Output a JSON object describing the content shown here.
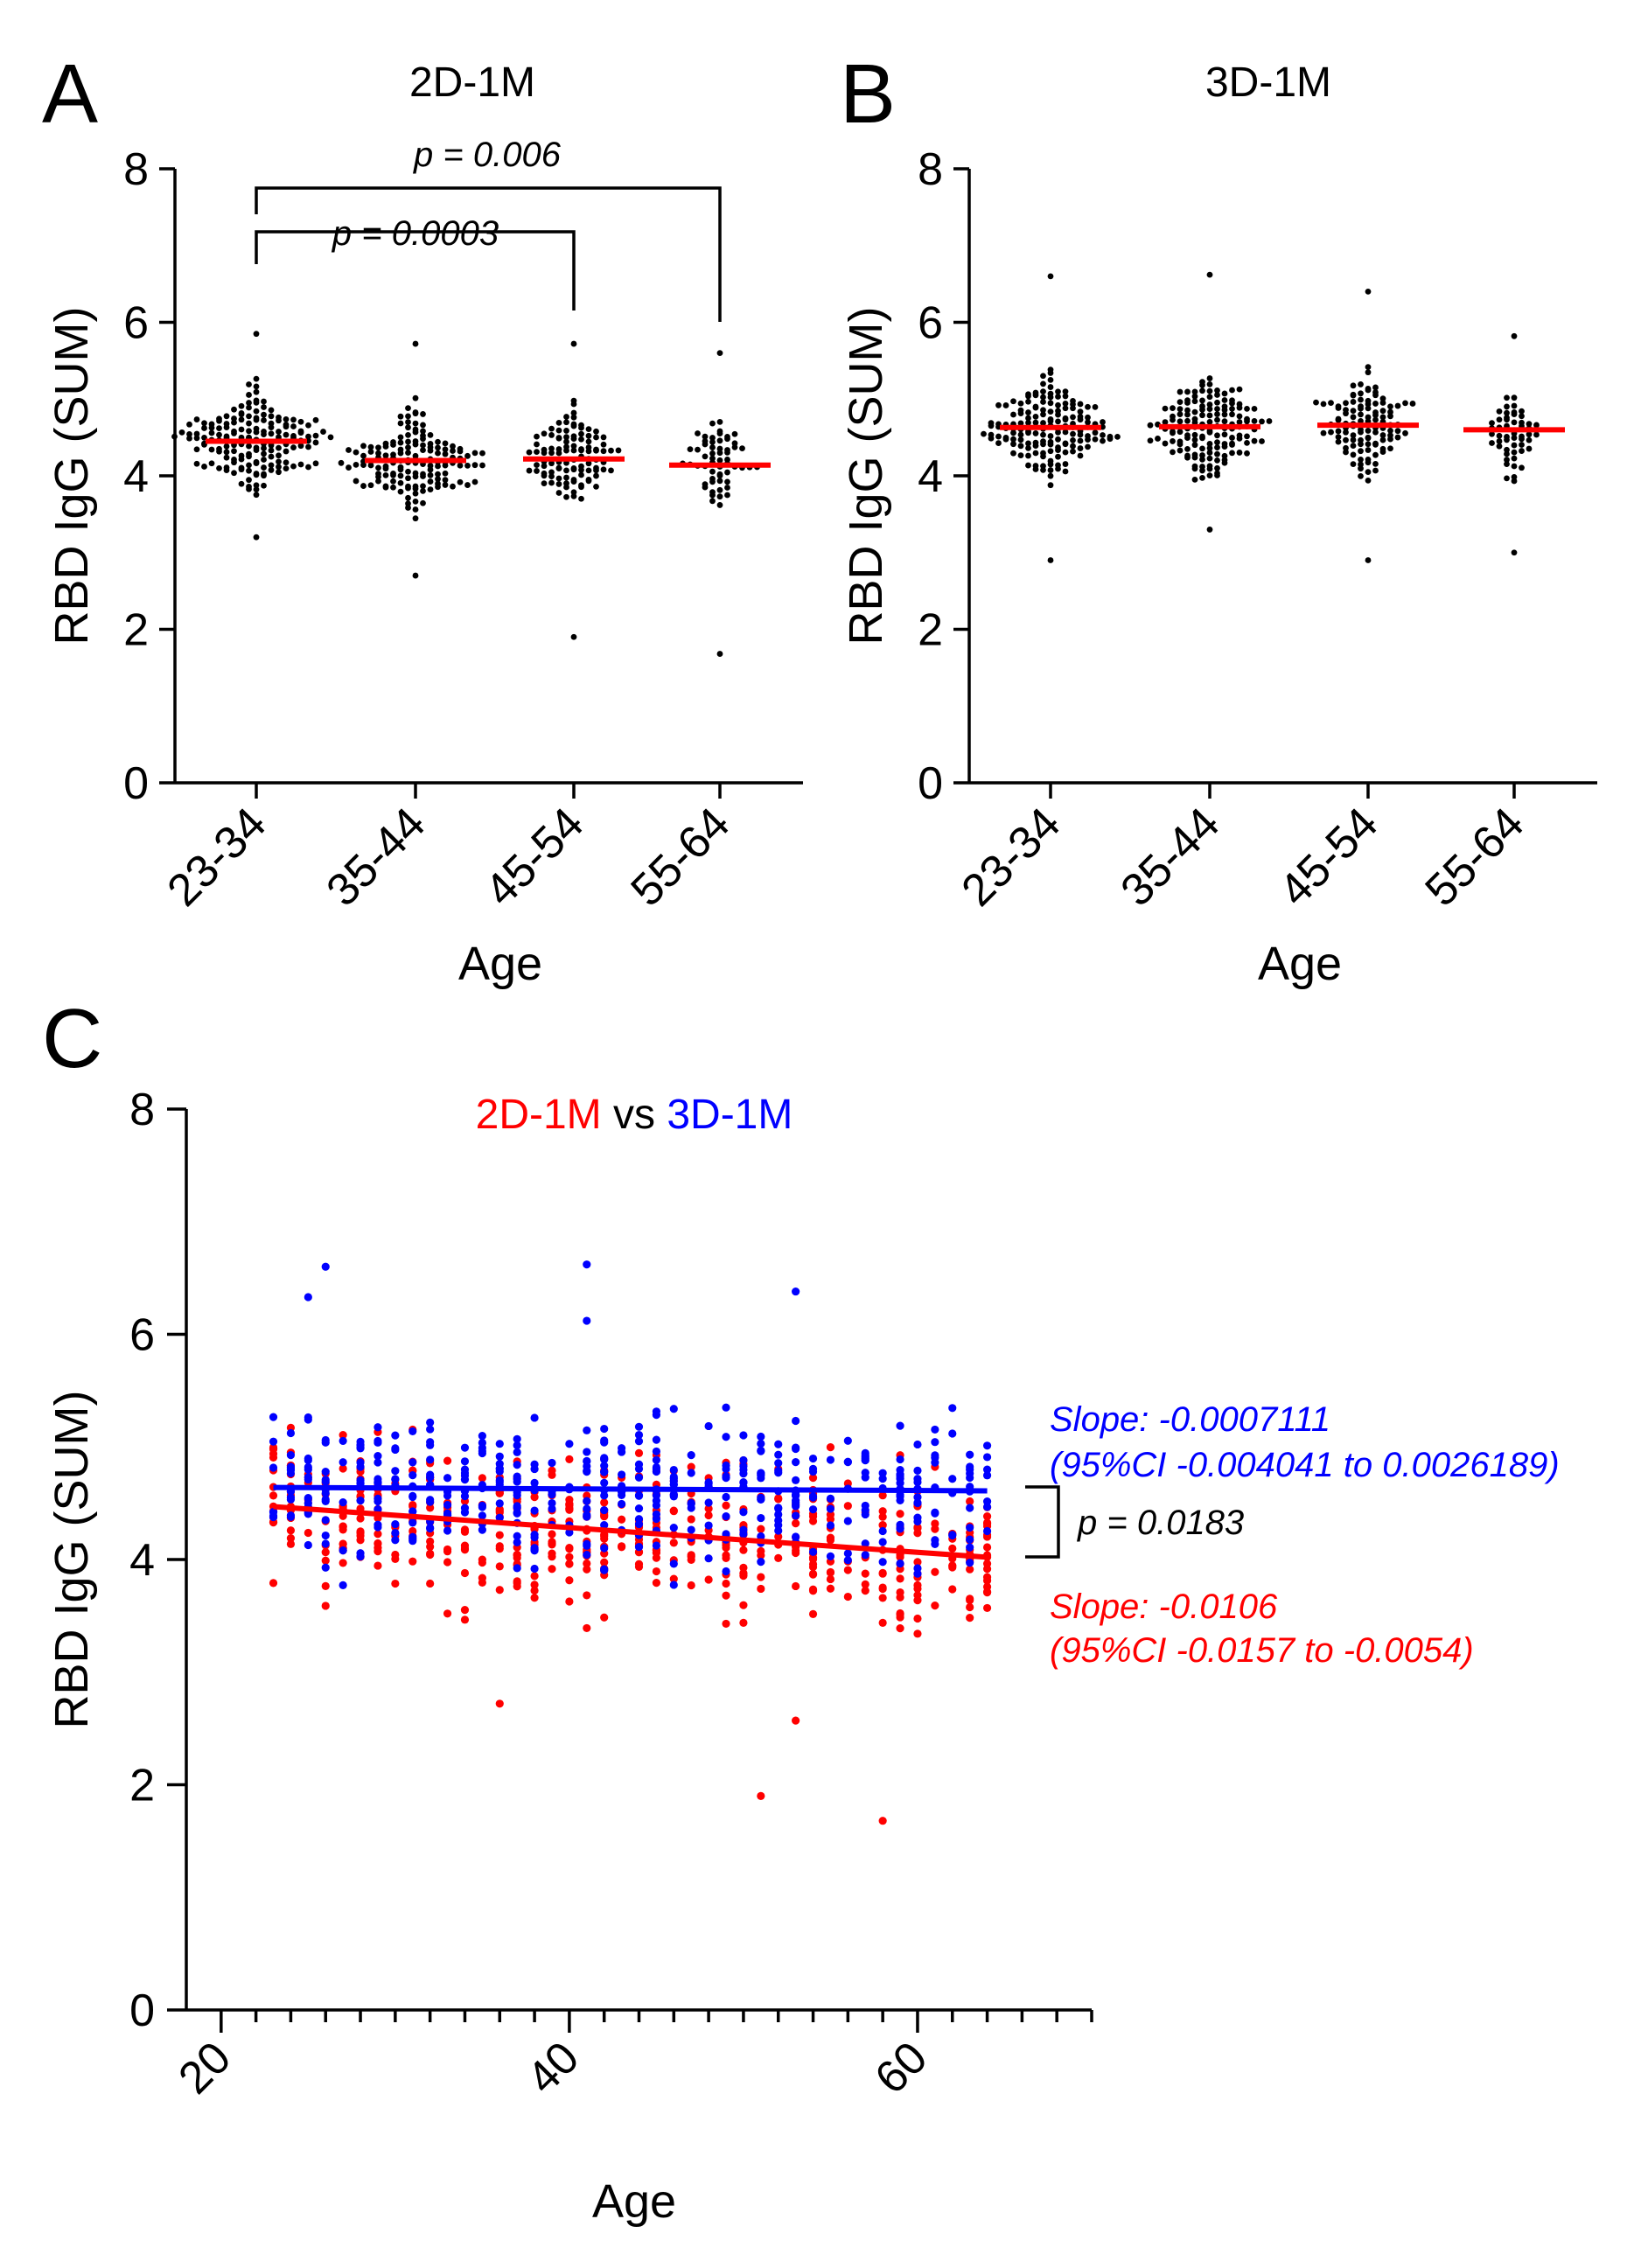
{
  "figure": {
    "panels": [
      "A",
      "B",
      "C"
    ]
  },
  "chart_data": [
    {
      "panel": "A",
      "type": "scatter",
      "subtype": "dot-plot",
      "title": "2D-1M",
      "xlabel": "Age",
      "ylabel": "RBD IgG (SUM)",
      "categories": [
        "23-34",
        "35-44",
        "45-54",
        "55-64"
      ],
      "ylim": [
        0,
        8
      ],
      "yticks": [
        0,
        2,
        4,
        6,
        8
      ],
      "medians": [
        4.45,
        4.2,
        4.22,
        4.14
      ],
      "ranges": [
        [
          3.2,
          5.85
        ],
        [
          2.7,
          5.72
        ],
        [
          1.9,
          5.72
        ],
        [
          1.68,
          5.6
        ]
      ],
      "counts": [
        170,
        150,
        110,
        60
      ],
      "point_color": "#000000",
      "median_color": "#ff0000",
      "comparisons": [
        {
          "from": "23-34",
          "to": "45-54",
          "label": "p = 0.0003"
        },
        {
          "from": "23-34",
          "to": "55-64",
          "label": "p = 0.006"
        }
      ]
    },
    {
      "panel": "B",
      "type": "scatter",
      "subtype": "dot-plot",
      "title": "3D-1M",
      "xlabel": "Age",
      "ylabel": "RBD IgG (SUM)",
      "categories": [
        "23-34",
        "35-44",
        "45-54",
        "55-64"
      ],
      "ylim": [
        0,
        8
      ],
      "yticks": [
        0,
        2,
        4,
        6,
        8
      ],
      "medians": [
        4.63,
        4.64,
        4.66,
        4.6
      ],
      "ranges": [
        [
          2.9,
          6.6
        ],
        [
          3.3,
          6.62
        ],
        [
          2.9,
          6.4
        ],
        [
          3.0,
          5.82
        ]
      ],
      "counts": [
        160,
        150,
        110,
        55
      ],
      "point_color": "#000000",
      "median_color": "#ff0000"
    },
    {
      "panel": "C",
      "type": "scatter",
      "title_parts": [
        "2D-1M",
        " vs ",
        "3D-1M"
      ],
      "xlabel": "Age",
      "ylabel": "RBD IgG (SUM)",
      "xlim": [
        18,
        70
      ],
      "ylim": [
        0,
        8
      ],
      "xticks": [
        20,
        40,
        60
      ],
      "yticks": [
        0,
        2,
        4,
        6,
        8
      ],
      "age_range": [
        23,
        64
      ],
      "series": [
        {
          "name": "2D-1M",
          "color": "#ff0000",
          "regression": {
            "x": [
              23,
              64
            ],
            "y": [
              4.47,
              4.02
            ]
          },
          "slope_label": "Slope: -0.0106",
          "ci_label": "(95%CI -0.0157 to -0.0054)",
          "outliers": [
            [
              51,
              1.9
            ],
            [
              58,
              1.68
            ],
            [
              53,
              2.57
            ],
            [
              36,
              2.72
            ]
          ]
        },
        {
          "name": "3D-1M",
          "color": "#0000ff",
          "regression": {
            "x": [
              23,
              64
            ],
            "y": [
              4.64,
              4.61
            ]
          },
          "slope_label": "Slope: -0.0007111",
          "ci_label": "(95%CI -0.004041 to 0.0026189)",
          "outliers": [
            [
              26,
              6.6
            ],
            [
              41,
              6.62
            ],
            [
              25,
              6.33
            ],
            [
              53,
              6.38
            ],
            [
              41,
              6.12
            ]
          ]
        }
      ],
      "comparison": {
        "label": "p = 0.0183"
      }
    }
  ]
}
